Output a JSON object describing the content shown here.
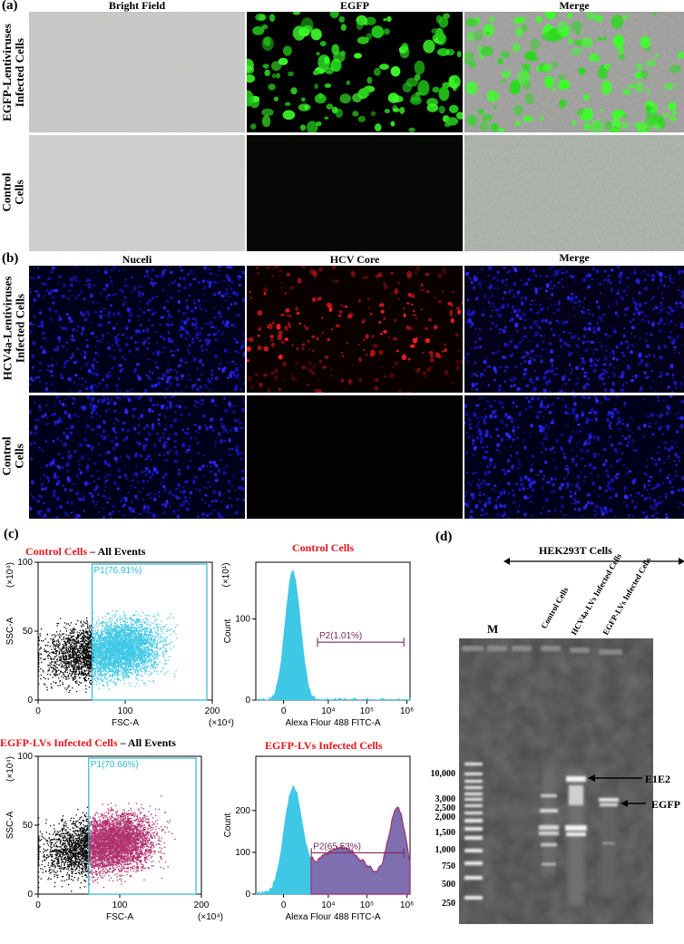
{
  "panel_a": {
    "letter": "(a)",
    "columns": [
      "Bright Field",
      "EGFP",
      "Merge"
    ],
    "rows": [
      {
        "line1": "EGFP-Lentiviruses",
        "line2": "Infected Cells"
      },
      {
        "line1": "Control",
        "line2": "Cells"
      }
    ]
  },
  "panel_b": {
    "letter": "(b)",
    "columns": [
      "Nuceli",
      "HCV Core",
      "Merge"
    ],
    "rows": [
      {
        "line1": "HCV4a-Lentiviruses",
        "line2": "Infected Cells"
      },
      {
        "line1": "Control",
        "line2": "Cells"
      }
    ]
  },
  "panel_c": {
    "letter": "(c)",
    "plots": [
      {
        "title_red": "Control Cells",
        "title_rest": " – All Events",
        "gate": "P1(76.91%)",
        "xlabel": "FSC-A",
        "ylabel": "SSC-A",
        "xunit": "(×10⁴)",
        "yunit": "(×10⁴)",
        "xticks": [
          "0",
          "100",
          "200"
        ],
        "yticks": [
          "0",
          "50",
          "100"
        ]
      },
      {
        "title_red": "Control Cells",
        "gate": "P2(1.01%)",
        "xlabel": "Alexa Flour 488 FITC-A",
        "ylabel": "Count",
        "yunit": "(×10¹)",
        "xticks": [
          "0",
          "10⁴",
          "10⁵",
          "10⁶"
        ],
        "yticks": [
          "0",
          "100"
        ]
      },
      {
        "title_red": "EGFP-LVs Infected Cells",
        "title_rest": " – All Events",
        "gate": "P1(70.66%)",
        "xlabel": "FSC-A",
        "ylabel": "SSC-A",
        "xunit": "(×10⁴)",
        "yunit": "(×10⁴)",
        "xticks": [
          "0",
          "100",
          "200"
        ],
        "yticks": [
          "0",
          "50",
          "100"
        ]
      },
      {
        "title_red": "EGFP-LVs Infected Cells",
        "gate": "P2(65.53%)",
        "xlabel": "Alexa Flour 488 FITC-A",
        "ylabel": "Count",
        "xticks": [
          "0",
          "10⁴",
          "10⁵",
          "10⁶"
        ],
        "yticks": [
          "0",
          "100",
          "200"
        ]
      }
    ]
  },
  "panel_d": {
    "letter": "(d)",
    "header": "HEK293T Cells",
    "marker_lane": "M",
    "lanes": [
      "Control Cells",
      "HCV4a-LVs Infected Cells",
      "EGFP-LVs Infected Cells"
    ],
    "ladder": [
      "10,000",
      "3,000",
      "2,500",
      "2,000",
      "1,500",
      "1,000",
      "750",
      "500",
      "250"
    ],
    "band_labels": [
      "E1E2",
      "EGFP"
    ]
  },
  "chart_data": [
    {
      "type": "scatter",
      "title": "Control Cells – All Events",
      "xlabel": "FSC-A (×10⁴)",
      "ylabel": "SSC-A (×10⁴)",
      "xlim": [
        0,
        200
      ],
      "ylim": [
        0,
        100
      ],
      "gate": {
        "name": "P1",
        "percent": 76.91
      }
    },
    {
      "type": "area",
      "title": "Control Cells",
      "xlabel": "Alexa Flour 488 FITC-A",
      "ylabel": "Count (×10¹)",
      "x": [
        "10³",
        "10⁴",
        "10⁵",
        "10⁶"
      ],
      "ylim": [
        0,
        170
      ],
      "peak": {
        "x": "10³·⁴",
        "y": 158
      },
      "gate": {
        "name": "P2",
        "percent": 1.01
      }
    },
    {
      "type": "scatter",
      "title": "EGFP-LVs Infected Cells – All Events",
      "xlabel": "FSC-A (×10⁴)",
      "ylabel": "SSC-A (×10⁴)",
      "xlim": [
        0,
        200
      ],
      "ylim": [
        0,
        100
      ],
      "gate": {
        "name": "P1",
        "percent": 70.66
      }
    },
    {
      "type": "area",
      "title": "EGFP-LVs Infected Cells",
      "xlabel": "Alexa Flour 488 FITC-A",
      "ylabel": "Count",
      "x": [
        "10³",
        "10⁴",
        "10⁵",
        "10⁶"
      ],
      "ylim": [
        0,
        330
      ],
      "peaks": [
        {
          "x": "10³·⁴",
          "y": 240
        },
        {
          "x": "10⁵·⁸",
          "y": 300
        }
      ],
      "gate": {
        "name": "P2",
        "percent": 65.53
      }
    }
  ],
  "colors": {
    "accent_red": "#e8141c",
    "cyan": "#3fc8e6",
    "magenta": "#a03a78",
    "gate": "#2bb8d6",
    "p2gate": "#7a2a55"
  }
}
